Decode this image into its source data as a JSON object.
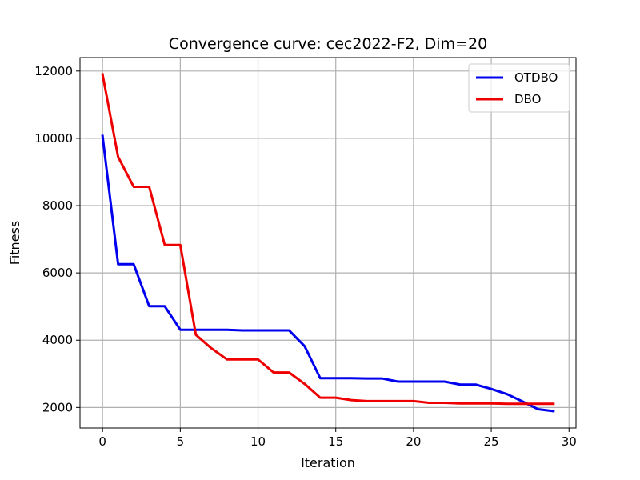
{
  "chart_data": {
    "type": "line",
    "title": "Convergence curve:  cec2022-F2, Dim=20",
    "xlabel": "Iteration",
    "ylabel": "Fitness",
    "xlim": [
      -1.45,
      30.45
    ],
    "ylim": [
      1390,
      12400
    ],
    "xticks": [
      0,
      5,
      10,
      15,
      20,
      25,
      30
    ],
    "yticks": [
      2000,
      4000,
      6000,
      8000,
      10000,
      12000
    ],
    "grid": true,
    "legend_position": "top-right",
    "x": [
      0,
      1,
      2,
      3,
      4,
      5,
      6,
      7,
      8,
      9,
      10,
      11,
      12,
      13,
      14,
      15,
      16,
      17,
      18,
      19,
      20,
      21,
      22,
      23,
      24,
      25,
      26,
      27,
      28,
      29
    ],
    "series": [
      {
        "name": "OTDBO",
        "color": "#0000ee",
        "values": [
          10070,
          6260,
          6260,
          5010,
          5010,
          4310,
          4310,
          4310,
          4310,
          4290,
          4290,
          4290,
          4290,
          3820,
          2870,
          2870,
          2870,
          2860,
          2860,
          2770,
          2770,
          2770,
          2770,
          2680,
          2680,
          2550,
          2400,
          2180,
          1950,
          1890
        ]
      },
      {
        "name": "DBO",
        "color": "#ee0000",
        "values": [
          11900,
          9450,
          8560,
          8560,
          6830,
          6830,
          4160,
          3760,
          3430,
          3430,
          3430,
          3040,
          3040,
          2700,
          2290,
          2290,
          2220,
          2190,
          2190,
          2190,
          2190,
          2140,
          2140,
          2120,
          2120,
          2120,
          2110,
          2110,
          2110,
          2110
        ]
      }
    ]
  }
}
